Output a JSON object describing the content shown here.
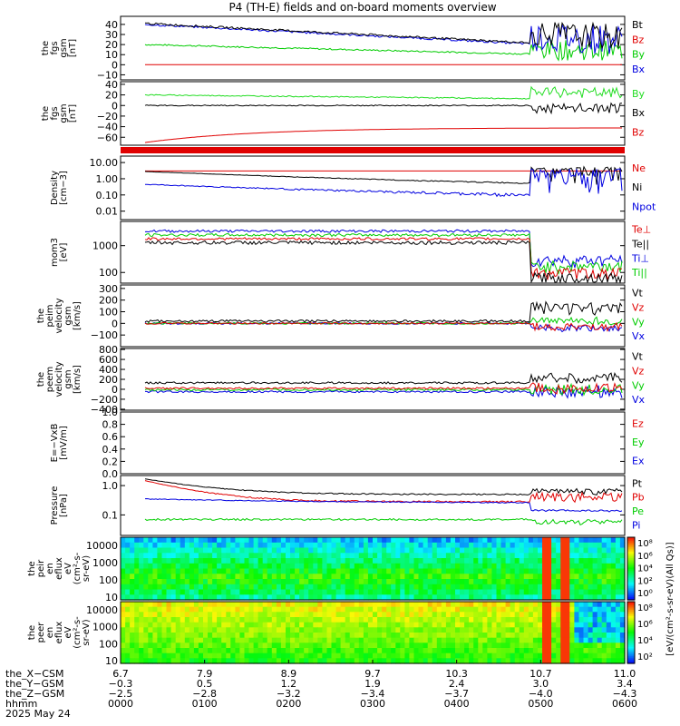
{
  "title": "P4 (TH-E) fields and on-board moments overview",
  "colors": {
    "black": "#000000",
    "red": "#e00000",
    "green": "#00cc00",
    "blue": "#0000e0",
    "lime": "#22dd22"
  },
  "panels": [
    {
      "id": "fgs-gsm",
      "ylabel": [
        "the",
        "fgs",
        "gsm",
        "[nT]"
      ],
      "ylim": [
        -15,
        48
      ],
      "ticks": [
        40,
        30,
        20,
        10,
        0,
        -10
      ],
      "tick_labels": [
        "40",
        "30",
        "20",
        "10",
        "0",
        "−10"
      ],
      "legend": [
        {
          "label": "Bt",
          "color": "#000000"
        },
        {
          "label": "Bz",
          "color": "#e00000"
        },
        {
          "label": "By",
          "color": "#00cc00"
        },
        {
          "label": "Bx",
          "color": "#0000e0"
        }
      ]
    },
    {
      "id": "fgs-gsm-2",
      "ylabel": [
        "the",
        "fgs",
        "gsm",
        "[nT]"
      ],
      "ylim": [
        -75,
        45
      ],
      "ticks": [
        40,
        20,
        0,
        -20,
        -40,
        -60
      ],
      "tick_labels": [
        "40",
        "20",
        "0",
        "−20",
        "−40",
        "−60"
      ],
      "legend": [
        {
          "label": "By",
          "color": "#22dd22"
        },
        {
          "label": "Bx",
          "color": "#000000"
        },
        {
          "label": "Bz",
          "color": "#e00000"
        }
      ]
    },
    {
      "id": "density",
      "ylabel": [
        "Density",
        "[cm−3]"
      ],
      "ylim_log": [
        0.003,
        25
      ],
      "ticks": [
        10,
        1,
        0.1,
        0.01
      ],
      "tick_labels": [
        "10.00",
        "1.00",
        "0.10",
        "0.01"
      ],
      "legend": [
        {
          "label": "Ne",
          "color": "#e00000"
        },
        {
          "label": "Ni",
          "color": "#000000"
        },
        {
          "label": "Npot",
          "color": "#0000e0"
        }
      ]
    },
    {
      "id": "temperature",
      "ylabel": [
        "mom3",
        "[eV]"
      ],
      "ylim_log": [
        40,
        8000
      ],
      "ticks": [
        1000,
        100
      ],
      "tick_labels": [
        "1000",
        "100"
      ],
      "legend": [
        {
          "label": "Te⊥",
          "color": "#e00000"
        },
        {
          "label": "Te||",
          "color": "#000000"
        },
        {
          "label": "Ti⊥",
          "color": "#0000e0"
        },
        {
          "label": "Ti||",
          "color": "#00cc00"
        }
      ]
    },
    {
      "id": "peim-velocity",
      "ylabel": [
        "the",
        "peim",
        "velocity",
        "gsm",
        "[km/s]"
      ],
      "ylim": [
        -200,
        330
      ],
      "ticks": [
        300,
        200,
        100,
        0,
        -100
      ],
      "tick_labels": [
        "300",
        "200",
        "100",
        "0",
        "−100"
      ],
      "legend": [
        {
          "label": "Vt",
          "color": "#000000"
        },
        {
          "label": "Vz",
          "color": "#e00000"
        },
        {
          "label": "Vy",
          "color": "#00cc00"
        },
        {
          "label": "Vx",
          "color": "#0000e0"
        }
      ]
    },
    {
      "id": "peem-velocity",
      "ylabel": [
        "the",
        "peem",
        "velocity",
        "gsm",
        "[km/s]"
      ],
      "ylim": [
        -420,
        820
      ],
      "ticks": [
        800,
        600,
        400,
        200,
        0,
        -200,
        -400
      ],
      "tick_labels": [
        "800",
        "600",
        "400",
        "200",
        "0",
        "−200",
        "−400"
      ],
      "legend": [
        {
          "label": "Vt",
          "color": "#000000"
        },
        {
          "label": "Vz",
          "color": "#e00000"
        },
        {
          "label": "Vy",
          "color": "#00cc00"
        },
        {
          "label": "Vx",
          "color": "#0000e0"
        }
      ]
    },
    {
      "id": "efield",
      "ylabel": [
        "E=−VxB",
        "[mV/m]"
      ],
      "ylim": [
        0,
        1
      ],
      "ticks": [
        1.0,
        0.8,
        0.6,
        0.4,
        0.2,
        0.0
      ],
      "tick_labels": [
        "1.0",
        "0.8",
        "0.6",
        "0.4",
        "0.2",
        "0.0"
      ],
      "legend": [
        {
          "label": "Ez",
          "color": "#e00000"
        },
        {
          "label": "Ey",
          "color": "#00cc00"
        },
        {
          "label": "Ex",
          "color": "#0000e0"
        }
      ]
    },
    {
      "id": "pressure",
      "ylabel": [
        "Pressure",
        "[nPa]"
      ],
      "ylim_log": [
        0.02,
        2.2
      ],
      "ticks": [
        1.0,
        0.1
      ],
      "tick_labels": [
        "1.0",
        "0.1"
      ],
      "legend": [
        {
          "label": "Pt",
          "color": "#000000"
        },
        {
          "label": "Pb",
          "color": "#e00000"
        },
        {
          "label": "Pe",
          "color": "#00cc00"
        },
        {
          "label": "Pi",
          "color": "#0000e0"
        }
      ]
    },
    {
      "id": "peir-spec",
      "ylabel": [
        "the",
        "peir",
        "en",
        "eflux",
        "eV",
        "(cm²-s-",
        "sr-eV)"
      ],
      "ylim_log": [
        7,
        30000
      ],
      "ticks": [
        10000,
        1000,
        100,
        10
      ],
      "tick_labels": [
        "10000",
        "1000",
        "100",
        "10"
      ]
    },
    {
      "id": "peer-spec",
      "ylabel": [
        "the",
        "peer",
        "en",
        "eflux",
        "eV",
        "(cm²-s-",
        "sr-eV)"
      ],
      "ylim_log": [
        7,
        30000
      ],
      "ticks": [
        10000,
        1000,
        100,
        10
      ],
      "tick_labels": [
        "10000",
        "1000",
        "100",
        "10"
      ]
    }
  ],
  "colorbars": [
    {
      "tick_labels": [
        "10⁸",
        "10⁶",
        "10⁴",
        "10²",
        "10⁰"
      ],
      "label": "[eV/(cm²-s-sr-eV)(All Qs)]"
    },
    {
      "tick_labels": [
        "10⁸",
        "10⁶",
        "10⁴",
        "10²"
      ],
      "label": "[eV/(cm²-s-sr-eV)(All Qs)]"
    }
  ],
  "xaxis": {
    "row_labels": [
      "the_X−CSM",
      "the_Y−GSM",
      "the_Z−GSM",
      "hhmm",
      "2025 May 24"
    ],
    "rows": [
      [
        "6.7",
        "7.9",
        "8.9",
        "9.7",
        "10.3",
        "10.7",
        "11.0"
      ],
      [
        "−0.3",
        "0.5",
        "1.2",
        "1.9",
        "2.4",
        "3.0",
        "3.4"
      ],
      [
        "−2.5",
        "−2.8",
        "−3.2",
        "−3.4",
        "−3.7",
        "−4.0",
        "−4.3"
      ],
      [
        "0000",
        "0100",
        "0200",
        "0300",
        "0400",
        "0500",
        "0600"
      ]
    ]
  }
}
